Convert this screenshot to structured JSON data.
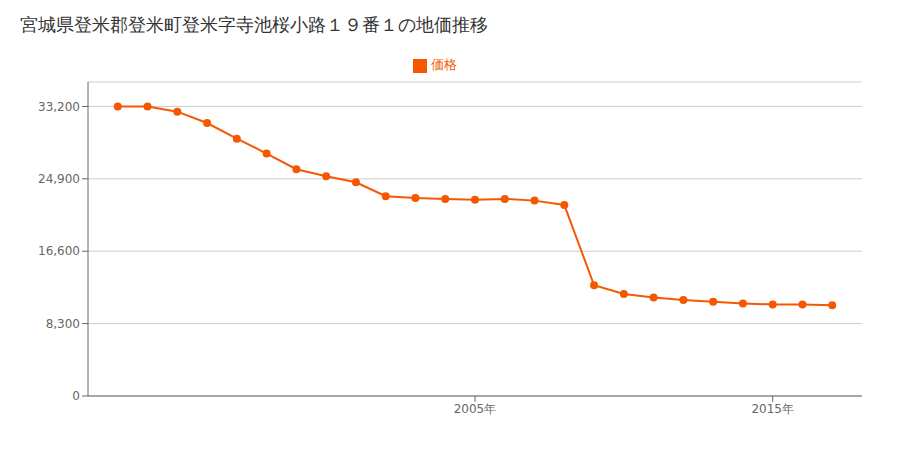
{
  "chart_data": {
    "type": "line",
    "title": "宮城県登米郡登米町登米字寺池桜小路１９番１の地価推移",
    "x": [
      1993,
      1994,
      1995,
      1996,
      1997,
      1998,
      1999,
      2000,
      2001,
      2002,
      2003,
      2004,
      2005,
      2006,
      2007,
      2008,
      2009,
      2010,
      2011,
      2012,
      2013,
      2014,
      2015,
      2016,
      2017
    ],
    "series": [
      {
        "name": "価格",
        "color": "#f55800",
        "marker": "circle",
        "values": [
          33200,
          33200,
          32600,
          31300,
          29500,
          27800,
          26000,
          25200,
          24500,
          22900,
          22700,
          22600,
          22500,
          22600,
          22400,
          21900,
          12700,
          11700,
          11300,
          11000,
          10800,
          10600,
          10500,
          10500,
          10400
        ]
      }
    ],
    "xlim": [
      1992,
      2018
    ],
    "xticks": [
      {
        "value": 2005,
        "label": "2005年"
      },
      {
        "value": 2015,
        "label": "2015年"
      }
    ],
    "ylim": [
      0,
      36000
    ],
    "yticks": [
      0,
      {
        "value": 8300,
        "label": "8,300"
      },
      {
        "value": 16600,
        "label": "16,600"
      },
      {
        "value": 24900,
        "label": "24,900"
      },
      {
        "value": 33200,
        "label": "33,200"
      }
    ],
    "grid": true,
    "legend": "top"
  }
}
